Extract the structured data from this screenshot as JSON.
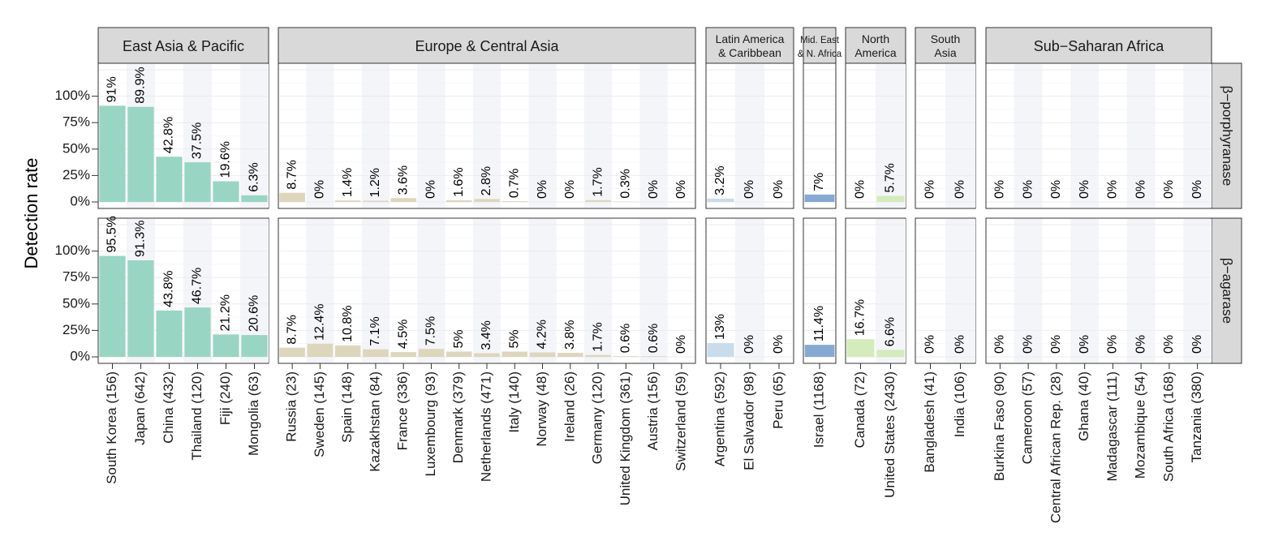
{
  "chart_data": {
    "type": "bar",
    "ylabel": "Detection rate",
    "ylim": [
      0,
      1.25
    ],
    "yticks": [
      "0%",
      "25%",
      "50%",
      "75%",
      "100%"
    ],
    "grid": true,
    "rows": [
      "β−porphyranase",
      "β−agarase"
    ],
    "groups": [
      {
        "name": "East Asia & Pacific",
        "color": "#99d5c3",
        "countries": [
          {
            "label": "South Korea (156)",
            "values": [
              91,
              95.5
            ],
            "labels": [
              "91%",
              "95.5%"
            ]
          },
          {
            "label": "Japan (642)",
            "values": [
              89.9,
              91.3
            ],
            "labels": [
              "89.9%",
              "91.3%"
            ]
          },
          {
            "label": "China (432)",
            "values": [
              42.8,
              43.8
            ],
            "labels": [
              "42.8%",
              "43.8%"
            ]
          },
          {
            "label": "Thailand (120)",
            "values": [
              37.5,
              46.7
            ],
            "labels": [
              "37.5%",
              "46.7%"
            ]
          },
          {
            "label": "Fiji (240)",
            "values": [
              19.6,
              21.2
            ],
            "labels": [
              "19.6%",
              "21.2%"
            ]
          },
          {
            "label": "Mongolia (63)",
            "values": [
              6.3,
              20.6
            ],
            "labels": [
              "6.3%",
              "20.6%"
            ]
          }
        ]
      },
      {
        "name": "Europe & Central Asia",
        "color": "#ddd6bd",
        "countries": [
          {
            "label": "Russia (23)",
            "values": [
              8.7,
              8.7
            ],
            "labels": [
              "8.7%",
              "8.7%"
            ]
          },
          {
            "label": "Sweden (145)",
            "values": [
              0,
              12.4
            ],
            "labels": [
              "0%",
              "12.4%"
            ]
          },
          {
            "label": "Spain (148)",
            "values": [
              1.4,
              10.8
            ],
            "labels": [
              "1.4%",
              "10.8%"
            ]
          },
          {
            "label": "Kazakhstan (84)",
            "values": [
              1.2,
              7.1
            ],
            "labels": [
              "1.2%",
              "7.1%"
            ]
          },
          {
            "label": "France (336)",
            "values": [
              3.6,
              4.5
            ],
            "labels": [
              "3.6%",
              "4.5%"
            ]
          },
          {
            "label": "Luxembourg (93)",
            "values": [
              0,
              7.5
            ],
            "labels": [
              "0%",
              "7.5%"
            ]
          },
          {
            "label": "Denmark (379)",
            "values": [
              1.6,
              5
            ],
            "labels": [
              "1.6%",
              "5%"
            ]
          },
          {
            "label": "Netherlands (471)",
            "values": [
              2.8,
              3.4
            ],
            "labels": [
              "2.8%",
              "3.4%"
            ]
          },
          {
            "label": "Italy (140)",
            "values": [
              0.7,
              5
            ],
            "labels": [
              "0.7%",
              "5%"
            ]
          },
          {
            "label": "Norway (48)",
            "values": [
              0,
              4.2
            ],
            "labels": [
              "0%",
              "4.2%"
            ]
          },
          {
            "label": "Ireland (26)",
            "values": [
              0,
              3.8
            ],
            "labels": [
              "0%",
              "3.8%"
            ]
          },
          {
            "label": "Germany (120)",
            "values": [
              1.7,
              1.7
            ],
            "labels": [
              "1.7%",
              "1.7%"
            ]
          },
          {
            "label": "United Kingdom (361)",
            "values": [
              0.3,
              0.6
            ],
            "labels": [
              "0.3%",
              "0.6%"
            ]
          },
          {
            "label": "Austria (156)",
            "values": [
              0,
              0.6
            ],
            "labels": [
              "0%",
              "0.6%"
            ]
          },
          {
            "label": "Switzerland (59)",
            "values": [
              0,
              0
            ],
            "labels": [
              "0%",
              "0%"
            ]
          }
        ]
      },
      {
        "name_lines": [
          "Latin America",
          "& Caribbean"
        ],
        "color": "#c9dcec",
        "countries": [
          {
            "label": "Argentina (592)",
            "values": [
              3.2,
              13
            ],
            "labels": [
              "3.2%",
              "13%"
            ]
          },
          {
            "label": "El Salvador (98)",
            "values": [
              0,
              0
            ],
            "labels": [
              "0%",
              "0%"
            ]
          },
          {
            "label": "Peru (65)",
            "values": [
              0,
              0
            ],
            "labels": [
              "0%",
              "0%"
            ]
          }
        ]
      },
      {
        "name_lines": [
          "Mid. East",
          "& N. Africa"
        ],
        "color": "#86a9d2",
        "countries": [
          {
            "label": "Israel (1168)",
            "values": [
              7,
              11.4
            ],
            "labels": [
              "7%",
              "11.4%"
            ]
          }
        ]
      },
      {
        "name_lines": [
          "North",
          "America"
        ],
        "color": "#d4ebbc",
        "countries": [
          {
            "label": "Canada (72)",
            "values": [
              0,
              16.7
            ],
            "labels": [
              "0%",
              "16.7%"
            ]
          },
          {
            "label": "United States (2430)",
            "values": [
              5.7,
              6.6
            ],
            "labels": [
              "5.7%",
              "6.6%"
            ]
          }
        ]
      },
      {
        "name_lines": [
          "South",
          "Asia"
        ],
        "color": "#e5e5e5",
        "countries": [
          {
            "label": "Bangladesh (41)",
            "values": [
              0,
              0
            ],
            "labels": [
              "0%",
              "0%"
            ]
          },
          {
            "label": "India (106)",
            "values": [
              0,
              0
            ],
            "labels": [
              "0%",
              "0%"
            ]
          }
        ]
      },
      {
        "name": "Sub−Saharan Africa",
        "color": "#e5e5e5",
        "countries": [
          {
            "label": "Burkina Faso (90)",
            "values": [
              0,
              0
            ],
            "labels": [
              "0%",
              "0%"
            ]
          },
          {
            "label": "Cameroon (57)",
            "values": [
              0,
              0
            ],
            "labels": [
              "0%",
              "0%"
            ]
          },
          {
            "label": "Central African Rep. (28)",
            "values": [
              0,
              0
            ],
            "labels": [
              "0%",
              "0%"
            ]
          },
          {
            "label": "Ghana (40)",
            "values": [
              0,
              0
            ],
            "labels": [
              "0%",
              "0%"
            ]
          },
          {
            "label": "Madagascar (111)",
            "values": [
              0,
              0
            ],
            "labels": [
              "0%",
              "0%"
            ]
          },
          {
            "label": "Mozambique (54)",
            "values": [
              0,
              0
            ],
            "labels": [
              "0%",
              "0%"
            ]
          },
          {
            "label": "South Africa (168)",
            "values": [
              0,
              0
            ],
            "labels": [
              "0%",
              "0%"
            ]
          },
          {
            "label": "Tanzania (380)",
            "values": [
              0,
              0
            ],
            "labels": [
              "0%",
              "0%"
            ]
          }
        ]
      }
    ]
  }
}
